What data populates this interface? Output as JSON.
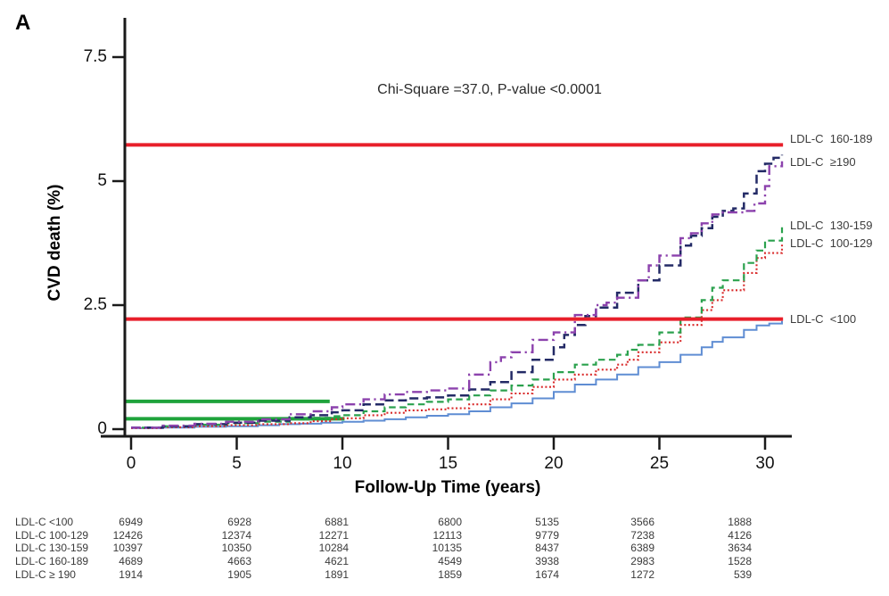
{
  "panel_label": "A",
  "annotation": "Chi-Square =37.0, P-value <0.0001",
  "axes": {
    "x_label": "Follow-Up Time (years)",
    "y_label": "CVD death (%)",
    "x_tick_labels": [
      "0",
      "5",
      "10",
      "15",
      "20",
      "25",
      "30"
    ],
    "y_tick_labels": [
      "0",
      "2.5",
      "5",
      "7.5"
    ]
  },
  "colors": {
    "axis": "#1a1a1a",
    "red_reference": "#e81f2a",
    "green_reference": "#1fa33c",
    "label_text": "#3c3c3c"
  },
  "chart_data": {
    "type": "line",
    "subtype": "kaplan-meier-step",
    "title": "",
    "xlabel": "Follow-Up Time (years)",
    "ylabel": "CVD death (%)",
    "xlim": [
      -1.2,
      32
    ],
    "ylim": [
      0,
      7.7
    ],
    "x_ticks": [
      0,
      5,
      10,
      15,
      20,
      25,
      30
    ],
    "y_ticks": [
      0,
      2.5,
      5,
      7.5
    ],
    "grid": false,
    "legend_position": "curve-end-labels-right",
    "annotation": "Chi-Square =37.0, P-value <0.0001",
    "series": [
      {
        "name": "ldl-under-100",
        "end_label": "LDL-C  <100",
        "color": "#5f8dd3",
        "line_style": "solid",
        "points": [
          [
            0,
            0.02
          ],
          [
            1.5,
            0.03
          ],
          [
            3,
            0.05
          ],
          [
            4.5,
            0.06
          ],
          [
            6,
            0.08
          ],
          [
            7,
            0.1
          ],
          [
            8,
            0.11
          ],
          [
            9,
            0.13
          ],
          [
            10,
            0.15
          ],
          [
            11,
            0.17
          ],
          [
            12,
            0.2
          ],
          [
            13,
            0.24
          ],
          [
            14,
            0.27
          ],
          [
            15,
            0.3
          ],
          [
            16,
            0.36
          ],
          [
            17,
            0.44
          ],
          [
            18,
            0.52
          ],
          [
            19,
            0.62
          ],
          [
            20,
            0.75
          ],
          [
            21,
            0.9
          ],
          [
            22,
            1.0
          ],
          [
            23,
            1.1
          ],
          [
            24,
            1.25
          ],
          [
            25,
            1.35
          ],
          [
            26,
            1.5
          ],
          [
            27,
            1.65
          ],
          [
            27.5,
            1.76
          ],
          [
            28,
            1.85
          ],
          [
            29,
            2.0
          ],
          [
            29.6,
            2.09
          ],
          [
            30.2,
            2.13
          ],
          [
            30.8,
            2.18
          ]
        ]
      },
      {
        "name": "ldl-100-129",
        "end_label": "LDL-C  100-129",
        "color": "#d92b2b",
        "line_style": "dotted",
        "points": [
          [
            0,
            0.02
          ],
          [
            1.5,
            0.04
          ],
          [
            3,
            0.06
          ],
          [
            4.5,
            0.08
          ],
          [
            6,
            0.1
          ],
          [
            7.5,
            0.12
          ],
          [
            8.5,
            0.16
          ],
          [
            9.5,
            0.2
          ],
          [
            10,
            0.22
          ],
          [
            11,
            0.28
          ],
          [
            12,
            0.33
          ],
          [
            13,
            0.38
          ],
          [
            14,
            0.4
          ],
          [
            15,
            0.42
          ],
          [
            16,
            0.5
          ],
          [
            17,
            0.6
          ],
          [
            18,
            0.72
          ],
          [
            19,
            0.85
          ],
          [
            20,
            1.0
          ],
          [
            21,
            1.1
          ],
          [
            22,
            1.2
          ],
          [
            23,
            1.3
          ],
          [
            23.5,
            1.4
          ],
          [
            24,
            1.55
          ],
          [
            25,
            1.75
          ],
          [
            26,
            2.1
          ],
          [
            27,
            2.4
          ],
          [
            27.5,
            2.6
          ],
          [
            28,
            2.8
          ],
          [
            29,
            3.15
          ],
          [
            29.6,
            3.45
          ],
          [
            30,
            3.55
          ],
          [
            30.8,
            3.72
          ]
        ]
      },
      {
        "name": "ldl-130-159",
        "end_label": "LDL-C  130-159",
        "color": "#2aa14d",
        "line_style": "dashed",
        "points": [
          [
            0,
            0.03
          ],
          [
            1.5,
            0.06
          ],
          [
            3,
            0.09
          ],
          [
            4.5,
            0.12
          ],
          [
            6,
            0.15
          ],
          [
            7.5,
            0.2
          ],
          [
            8.5,
            0.23
          ],
          [
            9.5,
            0.26
          ],
          [
            10,
            0.28
          ],
          [
            11,
            0.36
          ],
          [
            12,
            0.44
          ],
          [
            13,
            0.5
          ],
          [
            14,
            0.55
          ],
          [
            15,
            0.6
          ],
          [
            16,
            0.68
          ],
          [
            17,
            0.78
          ],
          [
            18,
            0.88
          ],
          [
            19,
            1.0
          ],
          [
            20,
            1.15
          ],
          [
            21,
            1.3
          ],
          [
            22,
            1.4
          ],
          [
            23,
            1.5
          ],
          [
            23.5,
            1.6
          ],
          [
            24,
            1.7
          ],
          [
            25,
            1.95
          ],
          [
            26,
            2.25
          ],
          [
            27,
            2.6
          ],
          [
            27.5,
            2.85
          ],
          [
            28,
            3.0
          ],
          [
            29,
            3.35
          ],
          [
            29.6,
            3.6
          ],
          [
            30,
            3.8
          ],
          [
            30.8,
            4.07
          ]
        ]
      },
      {
        "name": "ldl-160-189",
        "end_label": "LDL-C  160-189",
        "color": "#232a66",
        "line_style": "longdash",
        "points": [
          [
            0,
            0.03
          ],
          [
            1.5,
            0.06
          ],
          [
            3,
            0.1
          ],
          [
            4.5,
            0.13
          ],
          [
            6,
            0.17
          ],
          [
            7.5,
            0.24
          ],
          [
            8.5,
            0.28
          ],
          [
            9.5,
            0.34
          ],
          [
            10,
            0.38
          ],
          [
            11,
            0.5
          ],
          [
            12,
            0.58
          ],
          [
            13,
            0.62
          ],
          [
            14,
            0.64
          ],
          [
            15,
            0.68
          ],
          [
            16,
            0.8
          ],
          [
            17,
            0.95
          ],
          [
            18,
            1.15
          ],
          [
            19,
            1.4
          ],
          [
            20,
            1.65
          ],
          [
            20.5,
            1.9
          ],
          [
            21,
            2.1
          ],
          [
            21.5,
            2.28
          ],
          [
            22,
            2.45
          ],
          [
            23,
            2.75
          ],
          [
            24,
            3.0
          ],
          [
            25,
            3.3
          ],
          [
            26,
            3.7
          ],
          [
            26.5,
            3.9
          ],
          [
            27,
            4.05
          ],
          [
            27.5,
            4.28
          ],
          [
            28,
            4.4
          ],
          [
            28.5,
            4.45
          ],
          [
            29,
            4.75
          ],
          [
            29.6,
            5.2
          ],
          [
            30,
            5.35
          ],
          [
            30.4,
            5.47
          ],
          [
            30.8,
            5.53
          ]
        ]
      },
      {
        "name": "ldl-ge-190",
        "end_label": "LDL-C  ≥190",
        "color": "#8c42ad",
        "line_style": "dashdot",
        "points": [
          [
            0,
            0.03
          ],
          [
            1.5,
            0.07
          ],
          [
            3,
            0.11
          ],
          [
            4.5,
            0.15
          ],
          [
            6,
            0.2
          ],
          [
            7.5,
            0.3
          ],
          [
            8.5,
            0.36
          ],
          [
            9.5,
            0.44
          ],
          [
            10,
            0.5
          ],
          [
            11,
            0.6
          ],
          [
            12,
            0.7
          ],
          [
            13,
            0.75
          ],
          [
            14,
            0.78
          ],
          [
            15,
            0.82
          ],
          [
            16,
            1.1
          ],
          [
            17,
            1.35
          ],
          [
            17.5,
            1.45
          ],
          [
            18,
            1.55
          ],
          [
            19,
            1.8
          ],
          [
            20,
            1.95
          ],
          [
            21,
            2.3
          ],
          [
            22,
            2.5
          ],
          [
            22.5,
            2.55
          ],
          [
            23,
            2.65
          ],
          [
            24,
            3.0
          ],
          [
            24.5,
            3.3
          ],
          [
            25,
            3.5
          ],
          [
            26,
            3.85
          ],
          [
            26.5,
            3.95
          ],
          [
            27,
            4.15
          ],
          [
            27.5,
            4.33
          ],
          [
            28,
            4.37
          ],
          [
            29,
            4.4
          ],
          [
            29.5,
            4.55
          ],
          [
            30,
            4.9
          ],
          [
            30.2,
            5.3
          ],
          [
            30.8,
            5.4
          ]
        ]
      }
    ],
    "reference_lines": [
      {
        "value": 5.73,
        "t_start": -0.3,
        "t_end": 30.85,
        "color": "#e81f2a",
        "layer": "over"
      },
      {
        "value": 2.22,
        "t_start": -0.3,
        "t_end": 30.85,
        "color": "#e81f2a",
        "layer": "over"
      },
      {
        "value": 0.56,
        "t_start": -0.25,
        "t_end": 9.4,
        "color": "#1fa33c",
        "layer": "under"
      },
      {
        "value": 0.21,
        "t_start": -0.25,
        "t_end": 10.1,
        "color": "#1fa33c",
        "layer": "under"
      }
    ]
  },
  "risk_table": {
    "time_points": [
      0,
      5,
      10,
      15,
      20,
      25,
      30
    ],
    "rows": [
      {
        "label": "LDL-C <100",
        "counts": [
          "6949",
          "6928",
          "6881",
          "6800",
          "5135",
          "3566",
          "1888"
        ]
      },
      {
        "label": "LDL-C 100-129",
        "counts": [
          "12426",
          "12374",
          "12271",
          "12113",
          "9779",
          "7238",
          "4126"
        ]
      },
      {
        "label": "LDL-C 130-159",
        "counts": [
          "10397",
          "10350",
          "10284",
          "10135",
          "8437",
          "6389",
          "3634"
        ]
      },
      {
        "label": "LDL-C 160-189",
        "counts": [
          "4689",
          "4663",
          "4621",
          "4549",
          "3938",
          "2983",
          "1528"
        ]
      },
      {
        "label": "LDL-C ≥ 190",
        "counts": [
          "1914",
          "1905",
          "1891",
          "1859",
          "1674",
          "1272",
          "539"
        ]
      }
    ]
  }
}
